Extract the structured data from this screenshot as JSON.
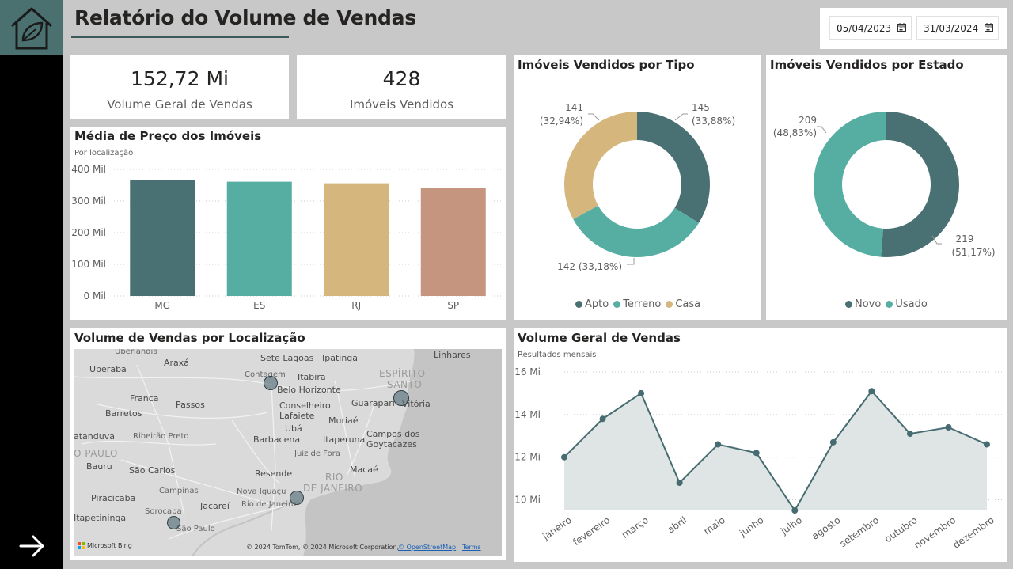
{
  "header": {
    "title": "Relatório do Volume de Vendas"
  },
  "date_filter": {
    "start": "05/04/2023",
    "end": "31/03/2024"
  },
  "colors": {
    "apto": "#497073",
    "terreno": "#56ada2",
    "casa": "#d5b77e",
    "sp_bar": "#c69580",
    "line": "#466c71",
    "area": "#dfe4e5"
  },
  "kpis": {
    "volume": {
      "value": "152,72 Mi",
      "label": "Volume Geral de Vendas"
    },
    "imoveis": {
      "value": "428",
      "label": "Imóveis Vendidos"
    }
  },
  "bar_card": {
    "title": "Média de Preço dos Imóveis",
    "subtitle": "Por localização"
  },
  "tipo_card": {
    "title": "Imóveis Vendidos por Tipo",
    "labels": {
      "apto_count": "145",
      "apto_pct": "(33,88%)",
      "casa_count": "141",
      "casa_pct": "(32,94%)",
      "terreno": "142 (33,18%)"
    }
  },
  "estado_card": {
    "title": "Imóveis Vendidos por Estado",
    "labels": {
      "usado_count": "209",
      "usado_pct": "(48,83%)",
      "novo_count": "219",
      "novo_pct": "(51,17%)"
    }
  },
  "map_card": {
    "title": "Volume de Vendas por Localização",
    "labels": {
      "uberlandia": "Uberlândia",
      "araxa": "Araxá",
      "sete_lagoas": "Sete Lagoas",
      "ipatinga": "Ipatinga",
      "linhares": "Linhares",
      "uberaba": "Uberaba",
      "contagem": "Contagem",
      "itabira": "Itabira",
      "espirito": "ESPÍRITO",
      "santo": "SANTO",
      "belo_horizonte": "Belo Horizonte",
      "franca": "Franca",
      "passos": "Passos",
      "conselheiro": "Conselheiro",
      "lafaiete": "Lafaiete",
      "guarapari": "Guarapari",
      "vitoria": "Vitória",
      "barretos": "Barretos",
      "muriae": "Muriaé",
      "uba": "Ubá",
      "itaperuna": "Itaperuna",
      "campos": "Campos dos",
      "goytacazes": "Goytacazes",
      "aranduva": "atanduva",
      "ribeirao": "Ribeirão Preto",
      "barbacena": "Barbacena",
      "sao_paulo_region": "O PAULO",
      "juiz": "Juiz de Fora",
      "bauru": "Bauru",
      "sao_carlos": "São Carlos",
      "macae": "Macaé",
      "resende": "Resende",
      "rio_region": "RIO",
      "de_janeiro": "DE JANEIRO",
      "piracicaba": "Piracicaba",
      "campinas": "Campinas",
      "nova_iguacu": "Nova Iguaçu",
      "jacarei": "Jacareí",
      "rio": "Rio de Janeiro",
      "itapetininga": "Itapetininga",
      "sorocaba": "Sorocaba",
      "sao_paulo": "São Paulo"
    },
    "attribution": {
      "bing": "Microsoft Bing",
      "copyright": "© 2024 TomTom, © 2024 Microsoft Corporation,",
      "osm": "© OpenStreetMap",
      "terms": "Terms"
    }
  },
  "line_card": {
    "title": "Volume Geral de Vendas",
    "subtitle": "Resultados mensais"
  },
  "chart_data": [
    {
      "type": "bar",
      "title": "Média de Preço dos Imóveis",
      "subtitle": "Por localização",
      "categories": [
        "MG",
        "ES",
        "RJ",
        "SP"
      ],
      "values": [
        367,
        361,
        356,
        341
      ],
      "unit": "Mil",
      "ylim": [
        0,
        400
      ],
      "yticks": [
        "0 Mil",
        "100 Mil",
        "200 Mil",
        "300 Mil",
        "400 Mil"
      ],
      "grid": true
    },
    {
      "type": "pie",
      "title": "Imóveis Vendidos por Tipo",
      "series": [
        {
          "name": "Apto",
          "value": 145,
          "percent": 33.88
        },
        {
          "name": "Terreno",
          "value": 142,
          "percent": 33.18
        },
        {
          "name": "Casa",
          "value": 141,
          "percent": 32.94
        }
      ],
      "legend": "bottom"
    },
    {
      "type": "pie",
      "title": "Imóveis Vendidos por Estado",
      "series": [
        {
          "name": "Novo",
          "value": 219,
          "percent": 51.17
        },
        {
          "name": "Usado",
          "value": 209,
          "percent": 48.83
        }
      ],
      "legend": "bottom"
    },
    {
      "type": "area",
      "title": "Volume Geral de Vendas",
      "subtitle": "Resultados mensais",
      "categories": [
        "janeiro",
        "fevereiro",
        "março",
        "abril",
        "maio",
        "junho",
        "julho",
        "agosto",
        "setembro",
        "outubro",
        "novembro",
        "dezembro"
      ],
      "values": [
        12.0,
        13.8,
        15.0,
        10.8,
        12.6,
        12.2,
        9.5,
        12.7,
        15.1,
        13.1,
        13.4,
        12.6
      ],
      "unit": "Mi",
      "ylim": [
        9.5,
        16
      ],
      "yticks": [
        "10 Mi",
        "12 Mi",
        "14 Mi",
        "16 Mi"
      ],
      "grid": true
    }
  ]
}
